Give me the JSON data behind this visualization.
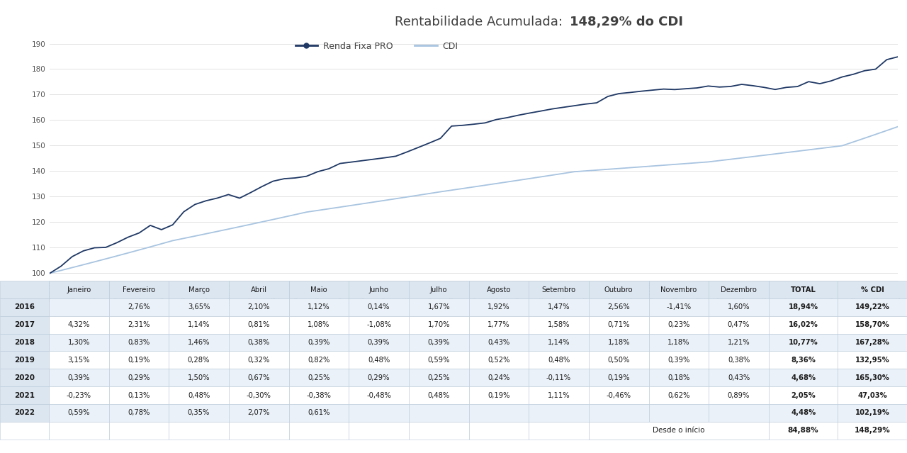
{
  "title_normal": "Rentabilidade Acumulada:  ",
  "title_bold": "148,29% do CDI",
  "ylim": [
    97,
    192
  ],
  "yticks": [
    100,
    110,
    120,
    130,
    140,
    150,
    160,
    170,
    180,
    190
  ],
  "line_rfp_color": "#1f3864",
  "line_cdi_color": "#a8c4e0",
  "legend_labels": [
    "Renda Fixa PRO",
    "CDI"
  ],
  "table_header": [
    "Janeiro",
    "Fevereiro",
    "Março",
    "Abril",
    "Maio",
    "Junho",
    "Julho",
    "Agosto",
    "Setembro",
    "Outubro",
    "Novembro",
    "Dezembro",
    "TOTAL",
    "% CDI"
  ],
  "table_years": [
    "2016",
    "2017",
    "2018",
    "2019",
    "2020",
    "2021",
    "2022"
  ],
  "table_data": [
    [
      "",
      "2,76%",
      "3,65%",
      "2,10%",
      "1,12%",
      "0,14%",
      "1,67%",
      "1,92%",
      "1,47%",
      "2,56%",
      "-1,41%",
      "1,60%",
      "18,94%",
      "149,22%"
    ],
    [
      "4,32%",
      "2,31%",
      "1,14%",
      "0,81%",
      "1,08%",
      "-1,08%",
      "1,70%",
      "1,77%",
      "1,58%",
      "0,71%",
      "0,23%",
      "0,47%",
      "16,02%",
      "158,70%"
    ],
    [
      "1,30%",
      "0,83%",
      "1,46%",
      "0,38%",
      "0,39%",
      "0,39%",
      "0,39%",
      "0,43%",
      "1,14%",
      "1,18%",
      "1,18%",
      "1,21%",
      "10,77%",
      "167,28%"
    ],
    [
      "3,15%",
      "0,19%",
      "0,28%",
      "0,32%",
      "0,82%",
      "0,48%",
      "0,59%",
      "0,52%",
      "0,48%",
      "0,50%",
      "0,39%",
      "0,38%",
      "8,36%",
      "132,95%"
    ],
    [
      "0,39%",
      "0,29%",
      "1,50%",
      "0,67%",
      "0,25%",
      "0,29%",
      "0,25%",
      "0,24%",
      "-0,11%",
      "0,19%",
      "0,18%",
      "0,43%",
      "4,68%",
      "165,30%"
    ],
    [
      "-0,23%",
      "0,13%",
      "0,48%",
      "-0,30%",
      "-0,38%",
      "-0,48%",
      "0,48%",
      "0,19%",
      "1,11%",
      "-0,46%",
      "0,62%",
      "0,89%",
      "2,05%",
      "47,03%"
    ],
    [
      "0,59%",
      "0,78%",
      "0,35%",
      "2,07%",
      "0,61%",
      "",
      "",
      "",
      "",
      "",
      "",
      "",
      "4,48%",
      "102,19%"
    ]
  ],
  "footer_label": "Desde o início",
  "footer_total": "84,88%",
  "footer_cdi": "148,29%",
  "bg_color": "#ffffff",
  "header_bg": "#dce6f1",
  "year_bg": "#dce6f1",
  "row_bg_odd": "#eaf1f8",
  "row_bg_even": "#ffffff",
  "footer_bg": "#ffffff",
  "table_border_color": "#b0b8c4",
  "chart_bg": "#ffffff",
  "grid_color": "#d8d8d8"
}
